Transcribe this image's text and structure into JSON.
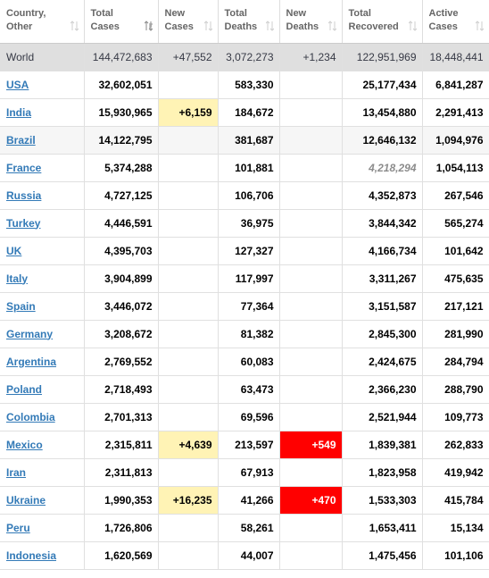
{
  "headers": [
    {
      "label": "Country,\nOther",
      "sort": "none"
    },
    {
      "label": "Total\nCases",
      "sort": "desc"
    },
    {
      "label": "New\nCases",
      "sort": "none"
    },
    {
      "label": "Total\nDeaths",
      "sort": "none"
    },
    {
      "label": "New\nDeaths",
      "sort": "none"
    },
    {
      "label": "Total\nRecovered",
      "sort": "none"
    },
    {
      "label": "Active\nCases",
      "sort": "none"
    }
  ],
  "world": {
    "name": "World",
    "total_cases": "144,472,683",
    "new_cases": "+47,552",
    "total_deaths": "3,072,273",
    "new_deaths": "+1,234",
    "total_recovered": "122,951,969",
    "active_cases": "18,448,441"
  },
  "rows": [
    {
      "name": "USA",
      "total_cases": "32,602,051",
      "new_cases": "",
      "total_deaths": "583,330",
      "new_deaths": "",
      "total_recovered": "25,177,434",
      "active_cases": "6,841,287"
    },
    {
      "name": "India",
      "total_cases": "15,930,965",
      "new_cases": "+6,159",
      "total_deaths": "184,672",
      "new_deaths": "",
      "total_recovered": "13,454,880",
      "active_cases": "2,291,413"
    },
    {
      "name": "Brazil",
      "total_cases": "14,122,795",
      "new_cases": "",
      "total_deaths": "381,687",
      "new_deaths": "",
      "total_recovered": "12,646,132",
      "active_cases": "1,094,976"
    },
    {
      "name": "France",
      "total_cases": "5,374,288",
      "new_cases": "",
      "total_deaths": "101,881",
      "new_deaths": "",
      "total_recovered": "4,218,294",
      "active_cases": "1,054,113"
    },
    {
      "name": "Russia",
      "total_cases": "4,727,125",
      "new_cases": "",
      "total_deaths": "106,706",
      "new_deaths": "",
      "total_recovered": "4,352,873",
      "active_cases": "267,546"
    },
    {
      "name": "Turkey",
      "total_cases": "4,446,591",
      "new_cases": "",
      "total_deaths": "36,975",
      "new_deaths": "",
      "total_recovered": "3,844,342",
      "active_cases": "565,274"
    },
    {
      "name": "UK",
      "total_cases": "4,395,703",
      "new_cases": "",
      "total_deaths": "127,327",
      "new_deaths": "",
      "total_recovered": "4,166,734",
      "active_cases": "101,642"
    },
    {
      "name": "Italy",
      "total_cases": "3,904,899",
      "new_cases": "",
      "total_deaths": "117,997",
      "new_deaths": "",
      "total_recovered": "3,311,267",
      "active_cases": "475,635"
    },
    {
      "name": "Spain",
      "total_cases": "3,446,072",
      "new_cases": "",
      "total_deaths": "77,364",
      "new_deaths": "",
      "total_recovered": "3,151,587",
      "active_cases": "217,121"
    },
    {
      "name": "Germany",
      "total_cases": "3,208,672",
      "new_cases": "",
      "total_deaths": "81,382",
      "new_deaths": "",
      "total_recovered": "2,845,300",
      "active_cases": "281,990"
    },
    {
      "name": "Argentina",
      "total_cases": "2,769,552",
      "new_cases": "",
      "total_deaths": "60,083",
      "new_deaths": "",
      "total_recovered": "2,424,675",
      "active_cases": "284,794"
    },
    {
      "name": "Poland",
      "total_cases": "2,718,493",
      "new_cases": "",
      "total_deaths": "63,473",
      "new_deaths": "",
      "total_recovered": "2,366,230",
      "active_cases": "288,790"
    },
    {
      "name": "Colombia",
      "total_cases": "2,701,313",
      "new_cases": "",
      "total_deaths": "69,596",
      "new_deaths": "",
      "total_recovered": "2,521,944",
      "active_cases": "109,773"
    },
    {
      "name": "Mexico",
      "total_cases": "2,315,811",
      "new_cases": "+4,639",
      "total_deaths": "213,597",
      "new_deaths": "+549",
      "total_recovered": "1,839,381",
      "active_cases": "262,833"
    },
    {
      "name": "Iran",
      "total_cases": "2,311,813",
      "new_cases": "",
      "total_deaths": "67,913",
      "new_deaths": "",
      "total_recovered": "1,823,958",
      "active_cases": "419,942"
    },
    {
      "name": "Ukraine",
      "total_cases": "1,990,353",
      "new_cases": "+16,235",
      "total_deaths": "41,266",
      "new_deaths": "+470",
      "total_recovered": "1,533,303",
      "active_cases": "415,784"
    },
    {
      "name": "Peru",
      "total_cases": "1,726,806",
      "new_cases": "",
      "total_deaths": "58,261",
      "new_deaths": "",
      "total_recovered": "1,653,411",
      "active_cases": "15,134"
    },
    {
      "name": "Indonesia",
      "total_cases": "1,620,569",
      "new_cases": "",
      "total_deaths": "44,007",
      "new_deaths": "",
      "total_recovered": "1,475,456",
      "active_cases": "101,106"
    }
  ],
  "colors": {
    "new_cases_bg": "#fff3b5",
    "new_deaths_bg": "#ff0000",
    "link": "#337ab7",
    "world_bg": "#dfdfdf"
  },
  "icons": {
    "sort_icon": "sort-arrows-icon",
    "sort_active_icon": "sort-desc-icon"
  }
}
